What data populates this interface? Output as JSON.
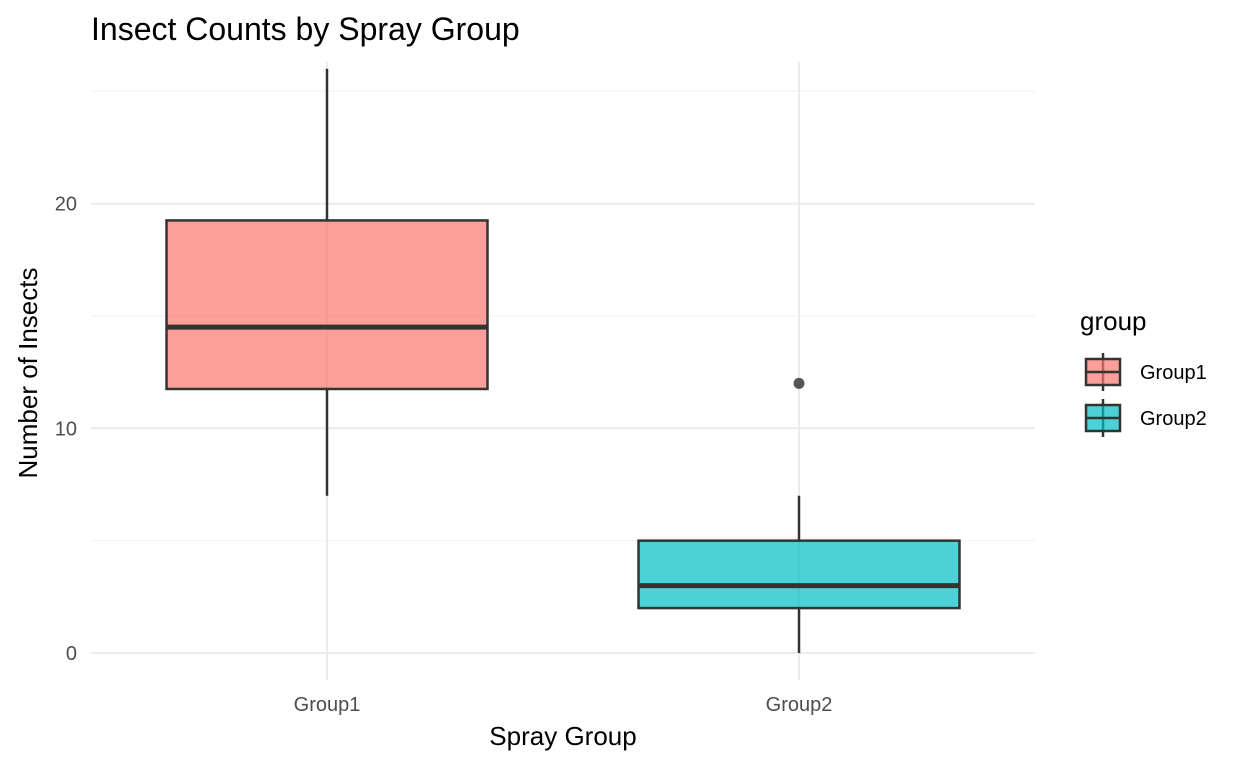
{
  "chart_data": {
    "type": "boxplot",
    "title": "Insect Counts by Spray Group",
    "xlabel": "Spray Group",
    "ylabel": "Number of Insects",
    "categories": [
      "Group1",
      "Group2"
    ],
    "ylim": [
      -1.2,
      26.3
    ],
    "yticks": [
      0,
      10,
      20
    ],
    "grid": true,
    "legend": {
      "title": "group",
      "position": "right",
      "entries": [
        "Group1",
        "Group2"
      ]
    },
    "series": [
      {
        "name": "Group1",
        "color": "#F8766D",
        "whisker_low": 7,
        "q1": 11.75,
        "median": 14.5,
        "q3": 19.25,
        "whisker_high": 26,
        "outliers": []
      },
      {
        "name": "Group2",
        "color": "#00BFC4",
        "whisker_low": 0,
        "q1": 2,
        "median": 3,
        "q3": 5,
        "whisker_high": 7,
        "outliers": [
          12
        ]
      }
    ]
  }
}
